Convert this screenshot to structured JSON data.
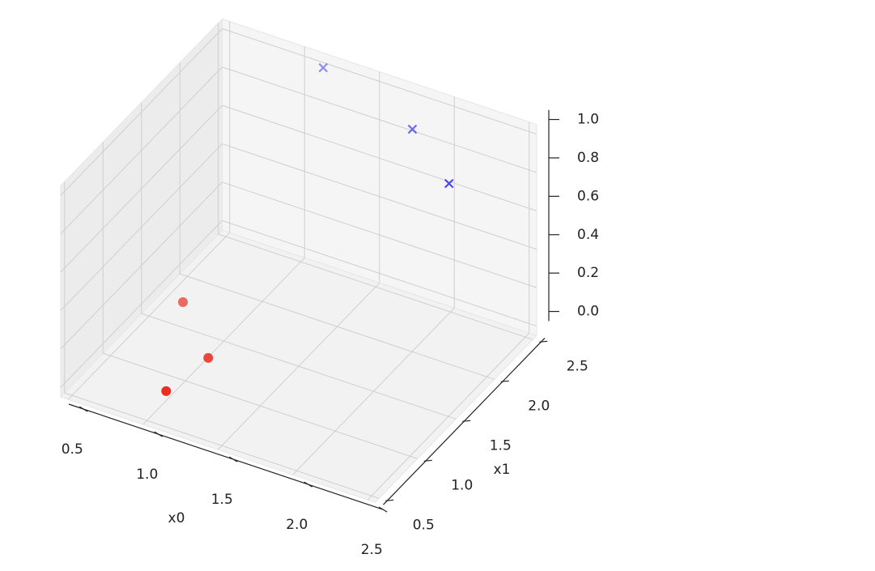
{
  "chart_data": {
    "type": "scatter3d",
    "xlabel": "x0",
    "ylabel": "x1",
    "xlim": [
      0.45,
      2.55
    ],
    "ylim": [
      0.45,
      2.55
    ],
    "zlim": [
      -0.05,
      1.05
    ],
    "xticks": [
      0.5,
      {
        "value": 1,
        "label": "1.0"
      },
      1.5,
      {
        "value": 2,
        "label": "2.0"
      },
      2.5
    ],
    "yticks": [
      0.5,
      {
        "value": 1,
        "label": "1.0"
      },
      1.5,
      {
        "value": 2,
        "label": "2.0"
      },
      2.5
    ],
    "zticks": [
      {
        "value": 0,
        "label": "0.0"
      },
      0.2,
      0.4,
      0.6,
      0.8,
      {
        "value": 1,
        "label": "1.0"
      }
    ],
    "grid": true,
    "series": [
      {
        "color": "#e8261a",
        "marker": "o",
        "x": [
          1.0,
          1.05,
          0.65
        ],
        "y": [
          0.75,
          1.2,
          1.65
        ],
        "z": [
          0,
          0,
          0
        ]
      },
      {
        "color": "#1a1ae8",
        "marker": "x",
        "x": [
          2.35,
          1.9,
          1.15
        ],
        "y": [
          1.8,
          2.2,
          2.5
        ],
        "z": [
          1,
          1,
          1
        ]
      }
    ]
  }
}
